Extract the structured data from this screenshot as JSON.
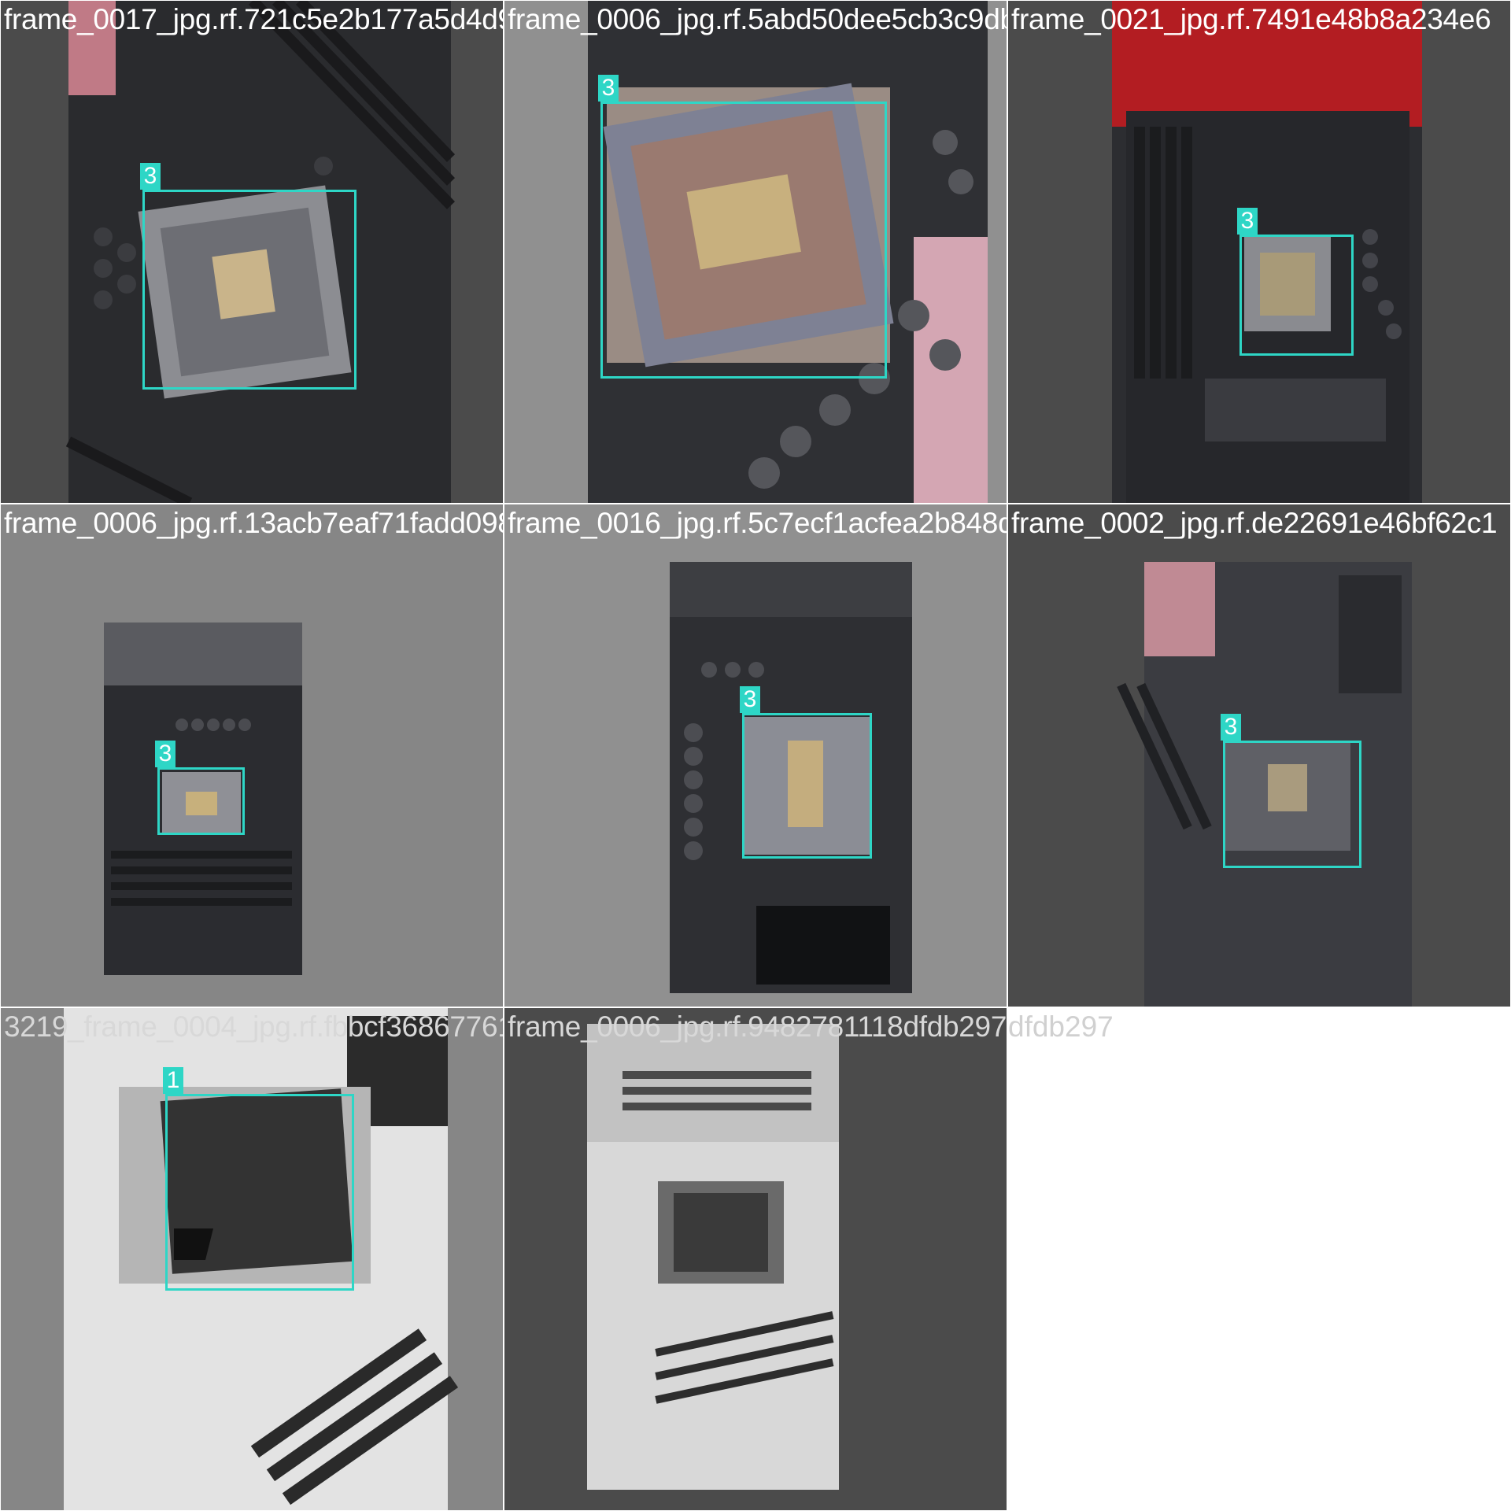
{
  "colors": {
    "box": "#2ed6c6",
    "pad_dark": "#4b4b4b",
    "pad_mid": "#868686",
    "pad_light": "#909090"
  },
  "tiles": [
    {
      "filename": "frame_0017_jpg.rf.721c5e2b177a5d4d92910",
      "label": "3"
    },
    {
      "filename": "frame_0006_jpg.rf.5abd50dee5cb3c9dba3c",
      "label": "3"
    },
    {
      "filename": "frame_0021_jpg.rf.7491e48b8a234e6",
      "label": "3"
    },
    {
      "filename": "frame_0006_jpg.rf.13acb7eaf71fadd0987e4",
      "label": "3"
    },
    {
      "filename": "frame_0016_jpg.rf.5c7ecf1acfea2b848d5",
      "label": "3"
    },
    {
      "filename": "frame_0002_jpg.rf.de22691e46bf62c1",
      "label": "3"
    },
    {
      "filename": "3219_frame_0004_jpg.rf.fbbcf3686776199d",
      "label": "1"
    },
    {
      "filename": "frame_0006_jpg.rf.9482781118dfdb297",
      "label": ""
    }
  ],
  "overflow_text": "dfdb297"
}
